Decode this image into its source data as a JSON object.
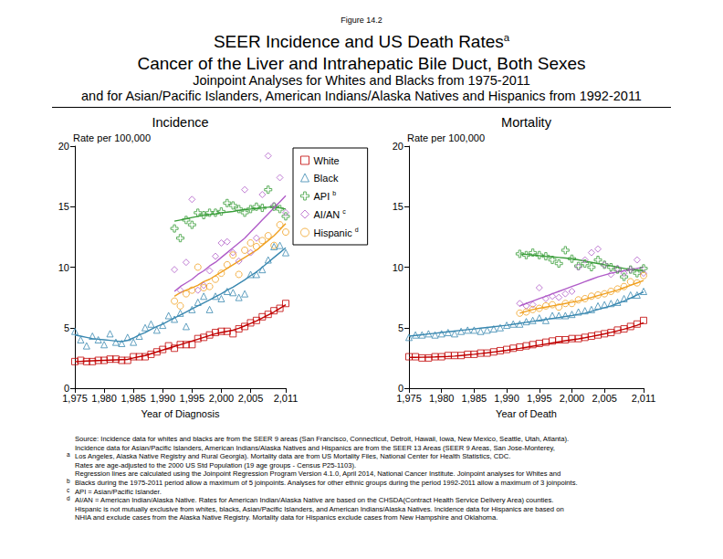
{
  "header": {
    "figure_label": "Figure 14.2",
    "title_lines": [
      {
        "text": "SEER Incidence and US Death Rates",
        "mark": "a"
      },
      {
        "text": "Cancer of the Liver and Intrahepatic Bile Duct, Both Sexes"
      }
    ],
    "subtitle_lines": [
      "Joinpoint Analyses for Whites and Blacks from 1975-2011",
      "and for Asian/Pacific Islanders, American Indians/Alaska Natives and Hispanics from 1992-2011"
    ]
  },
  "footnotes": [
    {
      "text": "Source:  Incidence data for whites and blacks are from the SEER 9 areas (San Francisco, Connecticut, Detroit, Hawaii, Iowa, New Mexico, Seattle, Utah, Atlanta)."
    },
    {
      "text": "Incidence data for Asian/Pacific Islanders, American Indians/Alaska Natives and Hispanics are from the SEER 13 Areas (SEER 9 Areas, San Jose-Monterey,"
    },
    {
      "mark": "a",
      "text": "Los Angeles, Alaska Native Registry and Rural Georgia).  Mortality data are from US Mortality Files, National Center for Health Statistics, CDC."
    },
    {
      "text": "Rates are age-adjusted to the 2000 US Std Population (19 age groups - Census P25-1103)."
    },
    {
      "text": "Regression lines are calculated using the Joinpoint Regression Program Version 4.1.0, April 2014, National Cancer Institute.  Joinpoint analyses for Whites and"
    },
    {
      "mark": "b",
      "text": "Blacks during the 1975-2011 period allow a maximum of 5 joinpoints.  Analyses for other ethnic groups during the period 1992-2011 allow a maximum of 3 joinpoints."
    },
    {
      "mark": "c",
      "text": "API = Asian/Pacific Islander."
    },
    {
      "mark": "d",
      "text": "AI/AN = American Indian/Alaska Native.  Rates for American Indian/Alaska Native are based on the CHSDA(Contract Health Service Delivery Area) counties."
    },
    {
      "text": "Hispanic is not mutually exclusive from whites, blacks, Asian/Pacific Islanders, and American Indians/Alaska Natives.  Incidence data for Hispanics are based on"
    },
    {
      "text": "NHIA and exclude cases from the Alaska Native Registry.  Mortality data for Hispanics exclude cases from New Hampshire and Oklahoma."
    }
  ],
  "chart_data": [
    {
      "type": "scatter",
      "title": "Incidence",
      "x_label": "Year of Diagnosis",
      "y_label": "Rate per 100,000",
      "xlim": [
        1975,
        2011
      ],
      "xticks": [
        1975,
        1980,
        1985,
        1990,
        1995,
        2000,
        2005,
        2011
      ],
      "ylim": [
        0,
        20
      ],
      "yticks": [
        0,
        5,
        10,
        15,
        20
      ],
      "grid": false,
      "legend": "upper right",
      "series": [
        {
          "name": "White",
          "color": "#c00000",
          "marker": "square",
          "x": [
            1975,
            1976,
            1977,
            1978,
            1979,
            1980,
            1981,
            1982,
            1983,
            1984,
            1985,
            1986,
            1987,
            1988,
            1989,
            1990,
            1991,
            1992,
            1993,
            1994,
            1995,
            1996,
            1997,
            1998,
            1999,
            2000,
            2001,
            2002,
            2003,
            2004,
            2005,
            2006,
            2007,
            2008,
            2009,
            2010,
            2011
          ],
          "values": [
            2.2,
            2.3,
            2.2,
            2.2,
            2.3,
            2.3,
            2.4,
            2.4,
            2.3,
            2.3,
            2.6,
            2.6,
            2.6,
            2.8,
            3.0,
            3.2,
            3.5,
            3.3,
            3.6,
            3.6,
            3.6,
            4.1,
            4.2,
            4.4,
            4.6,
            4.7,
            4.7,
            4.5,
            4.9,
            5.1,
            5.4,
            5.6,
            5.9,
            6.1,
            6.4,
            6.6,
            7.0
          ],
          "fit": [
            2.2,
            2.22,
            2.24,
            2.26,
            2.28,
            2.3,
            2.32,
            2.34,
            2.36,
            2.38,
            2.5,
            2.6,
            2.7,
            2.85,
            3.0,
            3.15,
            3.3,
            3.45,
            3.6,
            3.75,
            3.9,
            4.05,
            4.2,
            4.35,
            4.5,
            4.6,
            4.7,
            4.8,
            4.95,
            5.15,
            5.35,
            5.55,
            5.8,
            6.05,
            6.3,
            6.6,
            6.9
          ]
        },
        {
          "name": "Black",
          "color": "#3a88b0",
          "marker": "triangle",
          "x": [
            1975,
            1976,
            1977,
            1978,
            1979,
            1980,
            1981,
            1982,
            1983,
            1984,
            1985,
            1986,
            1987,
            1988,
            1989,
            1990,
            1991,
            1992,
            1993,
            1994,
            1995,
            1996,
            1997,
            1998,
            1999,
            2000,
            2001,
            2002,
            2003,
            2004,
            2005,
            2006,
            2007,
            2008,
            2009,
            2010,
            2011
          ],
          "values": [
            4.7,
            4.0,
            3.5,
            4.3,
            4.0,
            3.6,
            4.5,
            3.8,
            3.7,
            4.2,
            3.8,
            4.3,
            5.0,
            5.3,
            4.8,
            5.2,
            6.0,
            5.7,
            6.2,
            5.1,
            6.5,
            7.1,
            7.6,
            6.5,
            7.6,
            7.4,
            8.0,
            7.9,
            7.5,
            7.8,
            9.4,
            9.4,
            9.8,
            10.6,
            11.7,
            11.8,
            11.2
          ],
          "fit": [
            4.4,
            4.3,
            4.2,
            4.1,
            4.05,
            4.0,
            3.95,
            3.9,
            3.85,
            3.95,
            4.15,
            4.4,
            4.6,
            4.85,
            5.1,
            5.3,
            5.55,
            5.8,
            6.05,
            6.3,
            6.55,
            6.8,
            7.05,
            7.3,
            7.55,
            7.8,
            8.1,
            8.35,
            8.65,
            8.95,
            9.3,
            9.6,
            10.0,
            10.4,
            10.8,
            11.2,
            11.6
          ]
        },
        {
          "name": "API",
          "mark": "b",
          "color": "#3a9e3a",
          "marker": "plus",
          "x": [
            1992,
            1993,
            1994,
            1995,
            1996,
            1997,
            1998,
            1999,
            2000,
            2001,
            2002,
            2003,
            2004,
            2005,
            2006,
            2007,
            2008,
            2009,
            2010,
            2011
          ],
          "values": [
            13.2,
            12.4,
            13.9,
            13.5,
            14.5,
            14.3,
            14.5,
            14.5,
            14.6,
            15.3,
            15.1,
            14.8,
            14.5,
            14.8,
            15.0,
            14.9,
            16.4,
            15.0,
            14.8,
            14.2
          ],
          "fit": [
            13.8,
            13.9,
            14.0,
            14.1,
            14.2,
            14.3,
            14.35,
            14.4,
            14.5,
            14.55,
            14.6,
            14.7,
            14.75,
            14.8,
            14.85,
            14.9,
            14.95,
            15.0,
            14.9,
            14.8
          ]
        },
        {
          "name": "AI/AN",
          "mark": "c",
          "color": "#b05cc8",
          "marker": "diamond",
          "x": [
            1992,
            1993,
            1994,
            1995,
            1996,
            1997,
            1998,
            1999,
            2000,
            2001,
            2002,
            2003,
            2004,
            2005,
            2006,
            2007,
            2008,
            2009,
            2010,
            2011
          ],
          "values": [
            9.8,
            8.1,
            10.4,
            15.6,
            8.1,
            8.5,
            9.7,
            10.9,
            12.0,
            12.1,
            11.2,
            10.5,
            16.4,
            11.2,
            12.4,
            16.0,
            19.2,
            15.1,
            17.4,
            14.5
          ],
          "fit": [
            8.0,
            8.4,
            8.7,
            9.0,
            9.4,
            9.7,
            10.1,
            10.4,
            10.8,
            11.2,
            11.6,
            12.0,
            12.4,
            12.9,
            13.4,
            13.9,
            14.4,
            14.9,
            15.4,
            15.9
          ]
        },
        {
          "name": "Hispanic",
          "mark": "d",
          "color": "#f0a020",
          "marker": "circle",
          "x": [
            1992,
            1993,
            1994,
            1995,
            1996,
            1997,
            1998,
            1999,
            2000,
            2001,
            2002,
            2003,
            2004,
            2005,
            2006,
            2007,
            2008,
            2009,
            2010,
            2011
          ],
          "values": [
            7.2,
            6.8,
            7.8,
            8.1,
            10.0,
            8.3,
            8.4,
            9.0,
            9.5,
            10.2,
            11.0,
            9.4,
            11.4,
            12.0,
            11.7,
            12.2,
            12.6,
            11.8,
            13.5,
            12.9
          ],
          "fit": [
            7.6,
            7.9,
            8.1,
            8.3,
            8.5,
            8.8,
            9.0,
            9.3,
            9.6,
            9.9,
            10.2,
            10.5,
            10.8,
            11.1,
            11.4,
            11.8,
            12.2,
            12.6,
            13.1,
            13.6
          ]
        }
      ]
    },
    {
      "type": "scatter",
      "title": "Mortality",
      "x_label": "Year of Death",
      "y_label": "Rate per 100,000",
      "xlim": [
        1975,
        2011
      ],
      "xticks": [
        1975,
        1980,
        1985,
        1990,
        1995,
        2000,
        2005,
        2011
      ],
      "ylim": [
        0,
        20
      ],
      "yticks": [
        0,
        5,
        10,
        15,
        20
      ],
      "grid": false,
      "series": [
        {
          "name": "White",
          "color": "#c00000",
          "marker": "square",
          "x": [
            1975,
            1976,
            1977,
            1978,
            1979,
            1980,
            1981,
            1982,
            1983,
            1984,
            1985,
            1986,
            1987,
            1988,
            1989,
            1990,
            1991,
            1992,
            1993,
            1994,
            1995,
            1996,
            1997,
            1998,
            1999,
            2000,
            2001,
            2002,
            2003,
            2004,
            2005,
            2006,
            2007,
            2008,
            2009,
            2010,
            2011
          ],
          "values": [
            2.6,
            2.6,
            2.5,
            2.5,
            2.6,
            2.6,
            2.7,
            2.7,
            2.7,
            2.8,
            2.8,
            2.9,
            2.9,
            3.0,
            3.1,
            3.2,
            3.3,
            3.4,
            3.5,
            3.6,
            3.7,
            3.8,
            3.9,
            4.0,
            4.0,
            4.1,
            4.1,
            4.2,
            4.3,
            4.4,
            4.5,
            4.6,
            4.8,
            4.9,
            5.1,
            5.3,
            5.6
          ],
          "fit": [
            2.55,
            2.55,
            2.56,
            2.57,
            2.58,
            2.6,
            2.62,
            2.65,
            2.7,
            2.75,
            2.8,
            2.86,
            2.92,
            2.99,
            3.06,
            3.13,
            3.21,
            3.29,
            3.38,
            3.47,
            3.56,
            3.65,
            3.74,
            3.83,
            3.92,
            4.0,
            4.08,
            4.17,
            4.27,
            4.38,
            4.49,
            4.61,
            4.74,
            4.88,
            5.03,
            5.2,
            5.4
          ]
        },
        {
          "name": "Black",
          "color": "#3a88b0",
          "marker": "triangle",
          "x": [
            1975,
            1976,
            1977,
            1978,
            1979,
            1980,
            1981,
            1982,
            1983,
            1984,
            1985,
            1986,
            1987,
            1988,
            1989,
            1990,
            1991,
            1992,
            1993,
            1994,
            1995,
            1996,
            1997,
            1998,
            1999,
            2000,
            2001,
            2002,
            2003,
            2004,
            2005,
            2006,
            2007,
            2008,
            2009,
            2010,
            2011
          ],
          "values": [
            4.2,
            4.4,
            4.4,
            4.5,
            4.4,
            4.5,
            4.6,
            4.5,
            4.7,
            4.8,
            4.8,
            4.7,
            4.8,
            4.9,
            5.0,
            5.2,
            5.3,
            5.3,
            5.5,
            5.6,
            5.8,
            5.6,
            6.0,
            6.0,
            6.0,
            6.1,
            6.3,
            6.4,
            6.5,
            6.8,
            6.9,
            7.0,
            7.1,
            7.4,
            7.7,
            7.7,
            8.0
          ],
          "fit": [
            4.3,
            4.36,
            4.42,
            4.48,
            4.54,
            4.6,
            4.66,
            4.72,
            4.78,
            4.84,
            4.9,
            4.96,
            5.02,
            5.08,
            5.14,
            5.2,
            5.28,
            5.36,
            5.44,
            5.52,
            5.6,
            5.68,
            5.76,
            5.84,
            5.92,
            6.0,
            6.1,
            6.2,
            6.35,
            6.5,
            6.65,
            6.8,
            7.0,
            7.2,
            7.45,
            7.7,
            7.95
          ]
        },
        {
          "name": "API",
          "mark": "b",
          "color": "#3a9e3a",
          "marker": "plus",
          "x": [
            1992,
            1993,
            1994,
            1995,
            1996,
            1997,
            1998,
            1999,
            2000,
            2001,
            2002,
            2003,
            2004,
            2005,
            2006,
            2007,
            2008,
            2009,
            2010,
            2011
          ],
          "values": [
            11.1,
            11.0,
            11.2,
            11.0,
            10.9,
            10.6,
            10.3,
            11.4,
            10.7,
            10.1,
            10.3,
            10.0,
            10.6,
            10.2,
            10.0,
            9.8,
            9.2,
            9.8,
            9.5,
            9.9
          ],
          "fit": [
            11.1,
            11.05,
            11.0,
            10.95,
            10.9,
            10.85,
            10.8,
            10.75,
            10.7,
            10.6,
            10.5,
            10.4,
            10.3,
            10.2,
            10.1,
            10.0,
            9.9,
            9.8,
            9.75,
            9.7
          ]
        },
        {
          "name": "AI/AN",
          "mark": "c",
          "color": "#b05cc8",
          "marker": "diamond",
          "x": [
            1992,
            1993,
            1994,
            1995,
            1996,
            1997,
            1998,
            1999,
            2000,
            2001,
            2002,
            2003,
            2004,
            2005,
            2006,
            2007,
            2008,
            2009,
            2010,
            2011
          ],
          "values": [
            7.0,
            6.8,
            6.9,
            8.3,
            7.4,
            7.6,
            7.5,
            7.8,
            8.0,
            10.0,
            10.6,
            11.2,
            11.5,
            10.2,
            9.4,
            9.9,
            9.5,
            9.8,
            10.6,
            9.5
          ],
          "fit": [
            6.8,
            7.0,
            7.2,
            7.4,
            7.6,
            7.8,
            8.0,
            8.2,
            8.4,
            8.6,
            8.8,
            9.0,
            9.2,
            9.35,
            9.5,
            9.6,
            9.7,
            9.8,
            9.9,
            10.0
          ]
        },
        {
          "name": "Hispanic",
          "mark": "d",
          "color": "#f0a020",
          "marker": "circle",
          "x": [
            1992,
            1993,
            1994,
            1995,
            1996,
            1997,
            1998,
            1999,
            2000,
            2001,
            2002,
            2003,
            2004,
            2005,
            2006,
            2007,
            2008,
            2009,
            2010,
            2011
          ],
          "values": [
            6.2,
            6.3,
            6.5,
            6.6,
            6.8,
            6.9,
            6.7,
            7.0,
            7.0,
            7.3,
            7.4,
            7.6,
            7.7,
            7.8,
            8.0,
            8.2,
            8.4,
            8.8,
            8.7,
            9.3
          ],
          "fit": [
            6.2,
            6.35,
            6.5,
            6.6,
            6.7,
            6.8,
            6.9,
            7.0,
            7.1,
            7.2,
            7.35,
            7.5,
            7.65,
            7.8,
            7.95,
            8.1,
            8.3,
            8.5,
            8.7,
            8.9
          ]
        }
      ]
    }
  ]
}
